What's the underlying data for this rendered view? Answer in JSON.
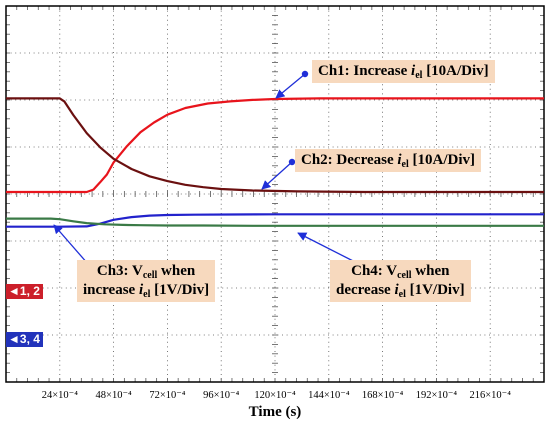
{
  "chart_data": {
    "type": "line",
    "xlabel": "Time (s)",
    "x_tick_labels": [
      "24×10⁻⁴",
      "48×10⁻⁴",
      "72×10⁻⁴",
      "96×10⁻⁴",
      "120×10⁻⁴",
      "144×10⁻⁴",
      "168×10⁻⁴",
      "192×10⁻⁴",
      "216×10⁻⁴"
    ],
    "xlim": [
      0,
      240
    ],
    "x_unit_note": "x values in units of 10⁻⁴ s",
    "grid": true,
    "series": [
      {
        "name": "Ch1: Increase iel [10A/Div]",
        "color": "#e8141c",
        "x": [
          0,
          24,
          36,
          39,
          42,
          45,
          48,
          54,
          60,
          66,
          72,
          80,
          90,
          100,
          110,
          120,
          140,
          180,
          240
        ],
        "y": [
          0.0,
          0.0,
          0.0,
          0.08,
          0.32,
          0.58,
          0.98,
          1.52,
          1.98,
          2.3,
          2.56,
          2.78,
          2.93,
          3.0,
          3.05,
          3.08,
          3.1,
          3.1,
          3.1
        ]
      },
      {
        "name": "Ch2: Decrease iel [10A/Div]",
        "color": "#6b1010",
        "x": [
          0,
          20,
          24,
          26,
          30,
          36,
          42,
          48,
          56,
          64,
          72,
          80,
          88,
          96,
          110,
          130,
          160,
          200,
          240
        ],
        "y": [
          3.1,
          3.1,
          3.1,
          3.0,
          2.55,
          1.95,
          1.48,
          1.1,
          0.76,
          0.52,
          0.36,
          0.24,
          0.16,
          0.1,
          0.05,
          0.02,
          0.0,
          0.0,
          0.0
        ]
      },
      {
        "name": "Ch3: Vcell when increase iel [1V/Div]",
        "color": "#2222cc",
        "x": [
          0,
          24,
          36,
          42,
          48,
          56,
          64,
          72,
          84,
          100,
          120,
          160,
          200,
          240
        ],
        "y": [
          -1.15,
          -1.15,
          -1.14,
          -1.05,
          -0.92,
          -0.83,
          -0.78,
          -0.76,
          -0.75,
          -0.745,
          -0.74,
          -0.74,
          -0.74,
          -0.74
        ]
      },
      {
        "name": "Ch4: Vcell when decrease iel [1V/Div]",
        "color": "#3a7a46",
        "x": [
          0,
          20,
          24,
          30,
          36,
          44,
          52,
          60,
          72,
          88,
          110,
          140,
          200,
          240
        ],
        "y": [
          -0.88,
          -0.88,
          -0.9,
          -0.97,
          -1.03,
          -1.07,
          -1.09,
          -1.1,
          -1.11,
          -1.11,
          -1.12,
          -1.12,
          -1.12,
          -1.12
        ]
      }
    ],
    "annotations": [
      {
        "parts": [
          "Ch1: Increase ",
          "i",
          "el",
          " [10A/Div]"
        ]
      },
      {
        "parts": [
          "Ch2: Decrease ",
          "i",
          "el",
          " [10A/Div]"
        ]
      },
      {
        "parts": [
          "Ch3: V",
          "cell",
          " when",
          "increase ",
          "i",
          "el",
          " [1V/Div]"
        ]
      },
      {
        "parts": [
          "Ch4: V",
          "cell",
          " when",
          "decrease ",
          "i",
          "el",
          " [1V/Div]"
        ]
      }
    ],
    "channel_markers": [
      {
        "label": "1, 2",
        "color": "#cc1f2a"
      },
      {
        "label": "3, 4",
        "color": "#2233bb"
      }
    ]
  }
}
